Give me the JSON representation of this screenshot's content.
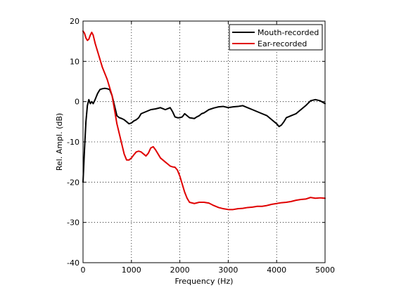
{
  "chart_data": {
    "type": "line",
    "xlabel": "Frequency (Hz)",
    "ylabel": "Rel. Ampl. (dB)",
    "xlim": [
      0,
      5000
    ],
    "ylim": [
      -40,
      20
    ],
    "xticks": [
      0,
      1000,
      2000,
      3000,
      4000,
      5000
    ],
    "xtick_labels": [
      "0",
      "1000",
      "2000",
      "3000",
      "4000",
      "5000"
    ],
    "yticks": [
      -40,
      -30,
      -20,
      -10,
      0,
      10,
      20
    ],
    "ytick_labels": [
      "-40",
      "-30",
      "-20",
      "-10",
      "0",
      "10",
      "20"
    ],
    "grid": true,
    "legend_position": "top-right",
    "series": [
      {
        "name": "Mouth-recorded",
        "color": "#000000",
        "x": [
          0,
          30,
          60,
          90,
          120,
          150,
          180,
          210,
          250,
          300,
          350,
          400,
          450,
          500,
          550,
          600,
          650,
          700,
          750,
          800,
          850,
          900,
          950,
          1000,
          1050,
          1100,
          1150,
          1200,
          1300,
          1400,
          1500,
          1600,
          1700,
          1800,
          1850,
          1900,
          1950,
          2000,
          2050,
          2100,
          2150,
          2200,
          2300,
          2350,
          2400,
          2450,
          2500,
          2600,
          2700,
          2800,
          2900,
          3000,
          3100,
          3200,
          3300,
          3400,
          3500,
          3600,
          3700,
          3800,
          3900,
          4000,
          4050,
          4100,
          4150,
          4200,
          4300,
          4400,
          4500,
          4600,
          4700,
          4800,
          4900,
          5000
        ],
        "y": [
          -20,
          -12,
          -5,
          -1,
          0.5,
          -0.5,
          0,
          -0.5,
          0.5,
          2,
          3,
          3.2,
          3.3,
          3.2,
          3,
          1.5,
          -1,
          -3.5,
          -4,
          -4.2,
          -4.5,
          -5,
          -5.5,
          -5.3,
          -4.8,
          -4.5,
          -4,
          -3,
          -2.5,
          -2,
          -1.8,
          -1.5,
          -2,
          -1.5,
          -2.5,
          -3.8,
          -4,
          -4,
          -3.8,
          -3,
          -3.5,
          -4,
          -4.2,
          -3.8,
          -3.5,
          -3,
          -2.8,
          -2,
          -1.6,
          -1.3,
          -1.2,
          -1.5,
          -1.3,
          -1.2,
          -1,
          -1.5,
          -2,
          -2.5,
          -3,
          -3.5,
          -4.5,
          -5.5,
          -6.2,
          -5.8,
          -5,
          -4,
          -3.5,
          -3,
          -2,
          -1,
          0.2,
          0.5,
          0.2,
          -0.5
        ]
      },
      {
        "name": "Ear-recorded",
        "color": "#e00000",
        "x": [
          0,
          30,
          60,
          90,
          120,
          150,
          180,
          210,
          250,
          300,
          350,
          400,
          450,
          500,
          550,
          600,
          650,
          700,
          750,
          800,
          850,
          900,
          950,
          1000,
          1050,
          1100,
          1150,
          1200,
          1250,
          1300,
          1350,
          1400,
          1450,
          1500,
          1550,
          1600,
          1650,
          1700,
          1750,
          1800,
          1850,
          1900,
          1950,
          2000,
          2050,
          2100,
          2150,
          2200,
          2300,
          2400,
          2500,
          2600,
          2700,
          2800,
          2900,
          3000,
          3100,
          3200,
          3300,
          3400,
          3500,
          3600,
          3700,
          3800,
          3900,
          4000,
          4100,
          4200,
          4300,
          4400,
          4500,
          4600,
          4700,
          4800,
          4900,
          5000
        ],
        "y": [
          17.5,
          17,
          15.8,
          15.2,
          15.5,
          16.5,
          17.2,
          16.5,
          14.5,
          12.5,
          10.5,
          8.5,
          7,
          5.5,
          3.5,
          1.5,
          -2,
          -5.5,
          -8,
          -10.5,
          -13,
          -14.5,
          -14.5,
          -14,
          -13.2,
          -12.5,
          -12.3,
          -12.5,
          -13,
          -13.5,
          -12.8,
          -11.5,
          -11.2,
          -12,
          -13,
          -14,
          -14.5,
          -15,
          -15.5,
          -16,
          -16.2,
          -16.3,
          -17,
          -18.5,
          -20.5,
          -22.5,
          -24,
          -25,
          -25.3,
          -25,
          -25,
          -25.2,
          -25.8,
          -26.3,
          -26.6,
          -26.8,
          -26.8,
          -26.6,
          -26.5,
          -26.3,
          -26.2,
          -26,
          -26,
          -25.8,
          -25.5,
          -25.3,
          -25.1,
          -25,
          -24.8,
          -24.5,
          -24.3,
          -24.2,
          -23.8,
          -24,
          -23.9,
          -24
        ]
      }
    ]
  }
}
